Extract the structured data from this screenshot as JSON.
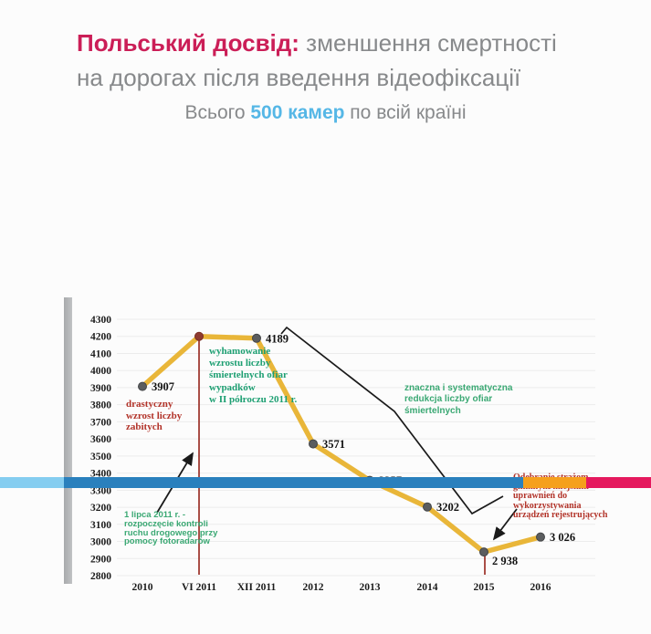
{
  "header": {
    "title_accent": "Польський досвід:",
    "title_line1_rest": " зменшення смертності",
    "title_line2": "на дорогах після введення відеофіксації",
    "subtitle_prefix": "Всього ",
    "subtitle_accent": "500 камер",
    "subtitle_suffix": " по всій країні"
  },
  "colors": {
    "title_accent": "#cb1e57",
    "title_gray": "#87898b",
    "subtitle_accent": "#55b7e6",
    "line": "#e8b22e",
    "marker": "#5b5d5f",
    "marker_peak": "#8e3b30",
    "event_line": "#a03b33",
    "gridline": "#ececec",
    "axis_text": "#1b1b1b",
    "arrow": "#1a1a1a",
    "annotation_red": "#b23329",
    "annotation_teal": "#1d9f72",
    "annotation_green": "#3aa873"
  },
  "chart_data": {
    "type": "line",
    "title": "",
    "xlabel": "",
    "ylabel": "",
    "ylim": [
      2800,
      4300
    ],
    "ytick_step": 100,
    "grid": true,
    "legend": false,
    "categories": [
      "2010",
      "VI 2011",
      "XII 2011",
      "2012",
      "2013",
      "2014",
      "2015",
      "2016"
    ],
    "points": [
      {
        "x": "2010",
        "value": 3907,
        "label": "3907",
        "marker": "normal"
      },
      {
        "x": "VI 2011",
        "value": 4200,
        "label": "",
        "marker": "peak"
      },
      {
        "x": "XII 2011",
        "value": 4189,
        "label": "4189",
        "marker": "normal"
      },
      {
        "x": "2012",
        "value": 3571,
        "label": "3571",
        "marker": "normal"
      },
      {
        "x": "2013",
        "value": 3357,
        "label": "3357",
        "marker": "normal"
      },
      {
        "x": "2014",
        "value": 3202,
        "label": "3202",
        "marker": "normal"
      },
      {
        "x": "2015",
        "value": 2938,
        "label": "2 938",
        "marker": "normal"
      },
      {
        "x": "2016",
        "value": 3026,
        "label": "3 026",
        "marker": "normal"
      }
    ],
    "event_markers": [
      {
        "x": "VI 2011",
        "style": "full-height-line"
      },
      {
        "x": "2015",
        "style": "short-tick"
      }
    ]
  },
  "annotations": [
    {
      "id": "drastic",
      "text": "drastyczny\nwzrost liczby\nzabitych",
      "color_role": "red",
      "font": "serif"
    },
    {
      "id": "slowdown",
      "text": "wyhamowanie\nwzrostu liczby\nśmiertelnych ofiar\nwypadków\nw II półroczu 2011 r.",
      "color_role": "teal",
      "font": "serif"
    },
    {
      "id": "start-control",
      "text": "1 lipca 2011 r. -\nrozpoczęcie kontroli\nruchu drogowego przy\npomocy fotoradarów",
      "color_role": "green",
      "font": "sans"
    },
    {
      "id": "reduction",
      "text": "znaczna i systematyczna\nredukcja liczby ofiar\nśmiertelnych",
      "color_role": "green",
      "font": "sans"
    },
    {
      "id": "revoked",
      "text": "Odebranie strażom\ngminnym/miejskim\nuprawnień do\nwykorzystywania\nurządzeń rejestrujących",
      "color_role": "red",
      "font": "serif"
    }
  ],
  "footer": {
    "segments": [
      "#85cdf0",
      "#2a80bd",
      "#f5a01c",
      "#e5195e"
    ]
  }
}
